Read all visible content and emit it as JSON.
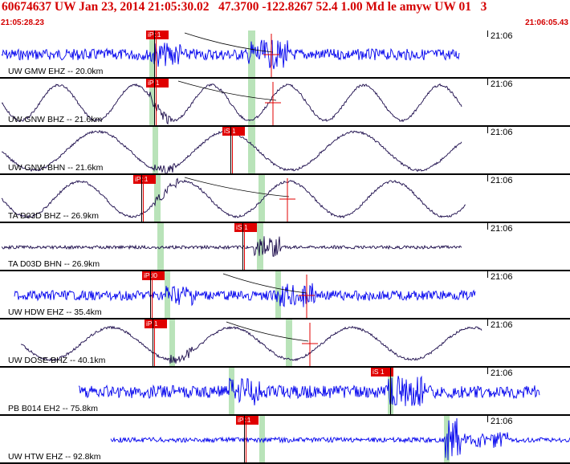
{
  "header": {
    "title": "60674637 UW Jan 23, 2014 21:05:30.02   47.3700 -122.8267 52.4 1.00 Md le amyw UW 01   3",
    "time_start": "21:05:28.23",
    "time_end": "21:06:05.43"
  },
  "colors": {
    "header_red": "#d40000",
    "pick_red": "#e00000",
    "trace_blue": "#0000ee",
    "trace_navy": "#1a0a4a",
    "window_green": "#b9e3b9"
  },
  "traces": [
    {
      "station": "UW GMW EHZ -- 20.0km",
      "clock": "21:06",
      "pick": "iPc1",
      "pick2": "",
      "color": "blue",
      "style": "noise"
    },
    {
      "station": "UW GNW BHZ -- 21.6km",
      "clock": "21:06",
      "pick": "iP 1",
      "pick2": "",
      "color": "navy",
      "style": "wave"
    },
    {
      "station": "UW GNW BHN -- 21.6km",
      "clock": "21:06",
      "pick": "iS 1",
      "pick2": "",
      "color": "navy",
      "style": "wave"
    },
    {
      "station": "TA D03D BHZ -- 26.9km",
      "clock": "21:06",
      "pick": "iPc1",
      "pick2": "",
      "color": "navy",
      "style": "wave"
    },
    {
      "station": "TA D03D BHN -- 26.9km",
      "clock": "21:06",
      "pick": "iS 1",
      "pick2": "",
      "color": "navy",
      "style": "flat"
    },
    {
      "station": "UW HDW EHZ -- 35.4km",
      "clock": "21:06",
      "pick": "iPd0",
      "pick2": "",
      "color": "blue",
      "style": "noise"
    },
    {
      "station": "UW DOSE BHZ -- 40.1km",
      "clock": "21:06",
      "pick": "iP 1",
      "pick2": "",
      "color": "navy",
      "style": "wave"
    },
    {
      "station": "PB B014 EH2 -- 75.8km",
      "clock": "21:06",
      "pick": "",
      "pick2": "iS 1",
      "color": "blue",
      "style": "noise"
    },
    {
      "station": "UW HTW EHZ -- 92.8km",
      "clock": "21:06",
      "pick": "iPc1",
      "pick2": "",
      "color": "blue",
      "style": "burst"
    }
  ]
}
